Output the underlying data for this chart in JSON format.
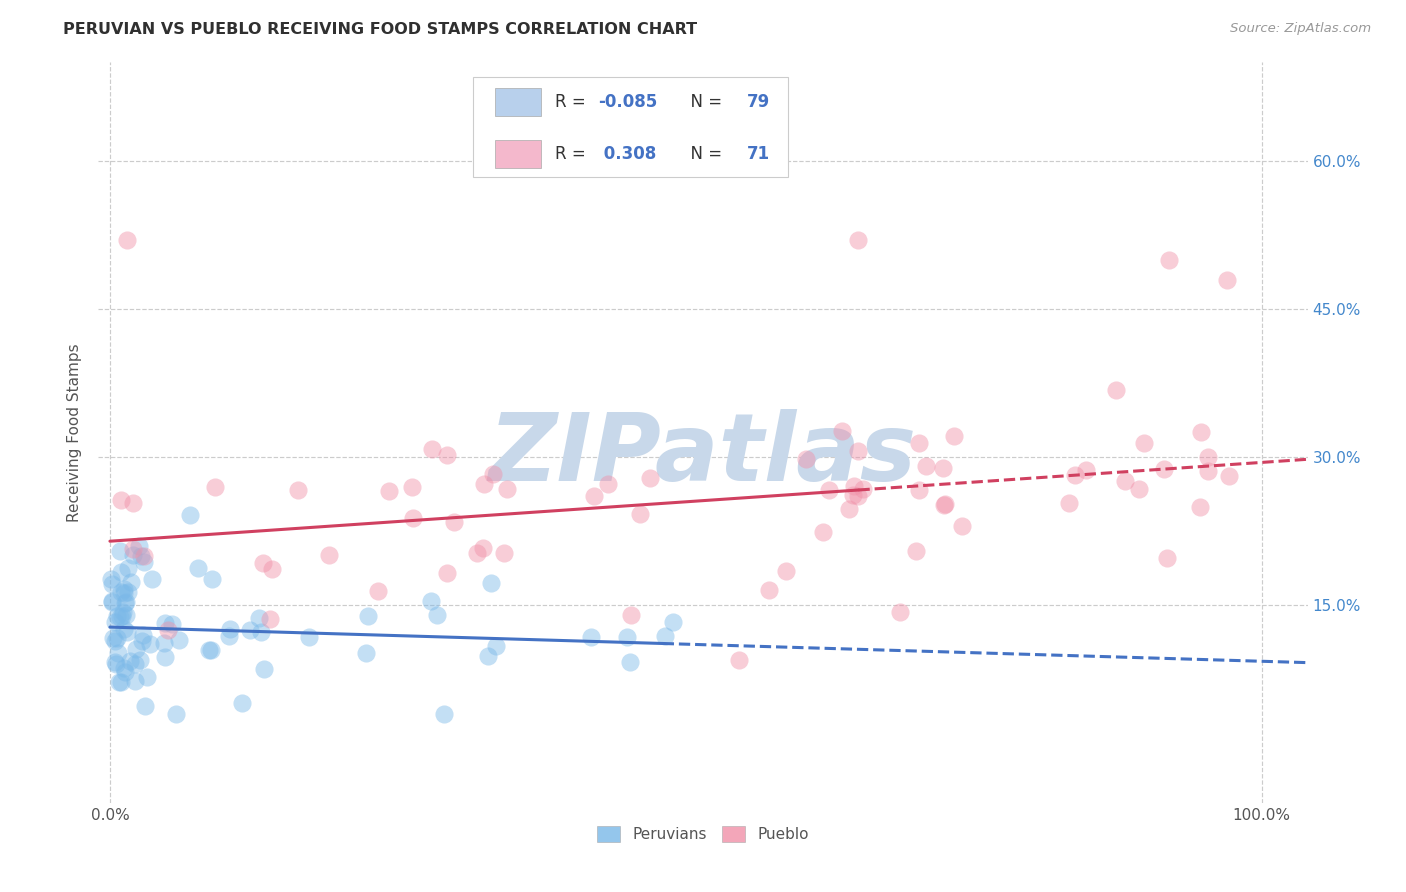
{
  "title": "PERUVIAN VS PUEBLO RECEIVING FOOD STAMPS CORRELATION CHART",
  "source": "Source: ZipAtlas.com",
  "ylabel": "Receiving Food Stamps",
  "ytick_values": [
    0.15,
    0.3,
    0.45,
    0.6
  ],
  "ytick_labels": [
    "15.0%",
    "30.0%",
    "45.0%",
    "60.0%"
  ],
  "xtick_values": [
    0.0,
    1.0
  ],
  "xtick_labels": [
    "0.0%",
    "100.0%"
  ],
  "xlim": [
    -0.01,
    1.04
  ],
  "ylim": [
    -0.05,
    0.7
  ],
  "legend_peru_patch": "#b8d0ec",
  "legend_pueblo_patch": "#f4b8cc",
  "legend_text_r_peru": "R = -0.085",
  "legend_text_n_peru": "N = 79",
  "legend_text_r_pueblo": "R =  0.308",
  "legend_text_n_pueblo": "N = 71",
  "legend_text_color": "#4472c4",
  "peruvians_color": "#7ab8e8",
  "pueblo_color": "#f090a8",
  "peruvians_alpha": 0.45,
  "pueblo_alpha": 0.45,
  "trend_peruvian_color": "#4472c4",
  "trend_pueblo_color": "#d04060",
  "peru_trend_start_x": 0.0,
  "peru_trend_solid_end_x": 0.48,
  "peru_trend_end_x": 1.04,
  "peru_trend_start_y": 0.128,
  "peru_trend_end_y": 0.092,
  "pueblo_trend_start_x": 0.0,
  "pueblo_trend_solid_end_x": 0.65,
  "pueblo_trend_end_x": 1.04,
  "pueblo_trend_start_y": 0.215,
  "pueblo_trend_end_y": 0.298,
  "watermark_text": "ZIPatlas",
  "watermark_color": "#c8d8ea",
  "background_color": "#ffffff",
  "grid_color": "#cccccc",
  "title_color": "#303030",
  "source_color": "#999999",
  "axis_label_color": "#555555",
  "right_tick_color": "#4488cc",
  "bottom_legend_labels": [
    "Peruvians",
    "Pueblo"
  ],
  "scatter_size": 170
}
